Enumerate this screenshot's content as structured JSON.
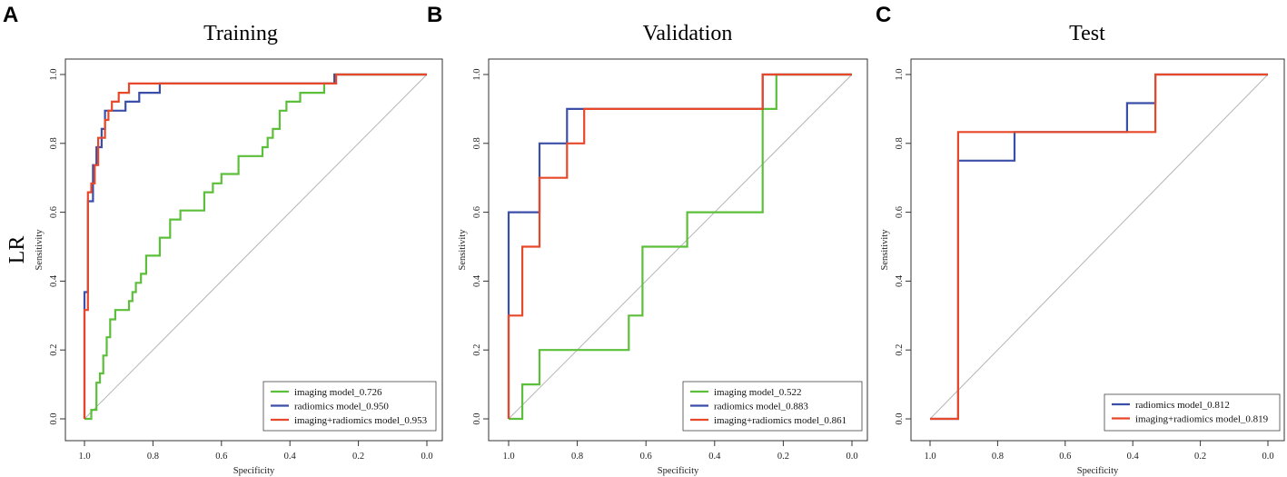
{
  "row_label": "LR",
  "chart_data": [
    {
      "panel": "A",
      "type": "line",
      "title": "Training",
      "xlabel": "Specificity",
      "ylabel": "Sensitivity",
      "xlim": [
        1.0,
        0.0
      ],
      "ylim": [
        0.0,
        1.0
      ],
      "xticks": [
        "1.0",
        "0.8",
        "0.6",
        "0.4",
        "0.2",
        "0.0"
      ],
      "yticks": [
        "0.0",
        "0.2",
        "0.4",
        "0.6",
        "0.8",
        "1.0"
      ],
      "diagonal": true,
      "legend_position": "bottom-right",
      "series": [
        {
          "name": "imaging model_0.726",
          "color": "#5cbf3a",
          "x": [
            1.0,
            0.98,
            0.98,
            0.965,
            0.965,
            0.955,
            0.955,
            0.945,
            0.945,
            0.935,
            0.935,
            0.925,
            0.925,
            0.91,
            0.91,
            0.87,
            0.87,
            0.86,
            0.86,
            0.85,
            0.85,
            0.835,
            0.835,
            0.82,
            0.82,
            0.78,
            0.78,
            0.75,
            0.75,
            0.72,
            0.72,
            0.65,
            0.65,
            0.625,
            0.625,
            0.6,
            0.6,
            0.55,
            0.55,
            0.48,
            0.48,
            0.465,
            0.465,
            0.45,
            0.45,
            0.43,
            0.43,
            0.41,
            0.41,
            0.37,
            0.37,
            0.35,
            0.35,
            0.3,
            0.3,
            0.27,
            0.27,
            0.0
          ],
          "y": [
            0.0,
            0.0,
            0.026,
            0.026,
            0.105,
            0.105,
            0.132,
            0.132,
            0.184,
            0.184,
            0.237,
            0.237,
            0.289,
            0.289,
            0.316,
            0.316,
            0.342,
            0.342,
            0.368,
            0.368,
            0.395,
            0.395,
            0.421,
            0.421,
            0.474,
            0.474,
            0.526,
            0.526,
            0.579,
            0.579,
            0.605,
            0.605,
            0.658,
            0.658,
            0.684,
            0.684,
            0.711,
            0.711,
            0.763,
            0.763,
            0.789,
            0.789,
            0.816,
            0.816,
            0.842,
            0.842,
            0.895,
            0.895,
            0.921,
            0.921,
            0.947,
            0.947,
            0.947,
            0.947,
            0.974,
            0.974,
            1.0,
            1.0
          ]
        },
        {
          "name": "radiomics model_0.950",
          "color": "#3b4ea8",
          "x": [
            1.0,
            1.0,
            0.99,
            0.99,
            0.975,
            0.975,
            0.965,
            0.965,
            0.95,
            0.95,
            0.94,
            0.94,
            0.9,
            0.9,
            0.88,
            0.88,
            0.84,
            0.84,
            0.81,
            0.81,
            0.78,
            0.78,
            0.27,
            0.27,
            0.0
          ],
          "y": [
            0.0,
            0.368,
            0.368,
            0.632,
            0.632,
            0.737,
            0.737,
            0.789,
            0.789,
            0.842,
            0.842,
            0.895,
            0.895,
            0.895,
            0.895,
            0.921,
            0.921,
            0.947,
            0.947,
            0.947,
            0.947,
            0.974,
            0.974,
            1.0,
            1.0
          ]
        },
        {
          "name": "imaging+radiomics model_0.953",
          "color": "#e8482a",
          "x": [
            1.0,
            1.0,
            0.99,
            0.99,
            0.98,
            0.98,
            0.97,
            0.97,
            0.96,
            0.96,
            0.94,
            0.94,
            0.93,
            0.93,
            0.92,
            0.92,
            0.9,
            0.9,
            0.88,
            0.88,
            0.87,
            0.87,
            0.265,
            0.265,
            0.0
          ],
          "y": [
            0.0,
            0.316,
            0.316,
            0.658,
            0.658,
            0.684,
            0.684,
            0.737,
            0.737,
            0.816,
            0.816,
            0.868,
            0.868,
            0.895,
            0.895,
            0.921,
            0.921,
            0.947,
            0.947,
            0.947,
            0.947,
            0.974,
            0.974,
            1.0,
            1.0
          ]
        }
      ]
    },
    {
      "panel": "B",
      "type": "line",
      "title": "Validation",
      "xlabel": "Specificity",
      "ylabel": "Sensitivity",
      "xlim": [
        1.0,
        0.0
      ],
      "ylim": [
        0.0,
        1.0
      ],
      "xticks": [
        "1.0",
        "0.8",
        "0.6",
        "0.4",
        "0.2",
        "0.0"
      ],
      "yticks": [
        "0.0",
        "0.2",
        "0.4",
        "0.6",
        "0.8",
        "1.0"
      ],
      "diagonal": true,
      "legend_position": "bottom-right",
      "series": [
        {
          "name": "imaging model_0.522",
          "color": "#5cbf3a",
          "x": [
            1.0,
            0.96,
            0.96,
            0.91,
            0.91,
            0.65,
            0.65,
            0.61,
            0.61,
            0.48,
            0.48,
            0.26,
            0.26,
            0.22,
            0.22,
            0.0
          ],
          "y": [
            0.0,
            0.0,
            0.1,
            0.1,
            0.2,
            0.2,
            0.3,
            0.3,
            0.5,
            0.5,
            0.6,
            0.6,
            0.9,
            0.9,
            1.0,
            1.0
          ]
        },
        {
          "name": "radiomics model_0.883",
          "color": "#3b4ea8",
          "x": [
            1.0,
            1.0,
            0.91,
            0.91,
            0.83,
            0.83,
            0.78,
            0.78,
            0.26,
            0.26,
            0.0
          ],
          "y": [
            0.0,
            0.6,
            0.6,
            0.8,
            0.8,
            0.9,
            0.9,
            0.9,
            0.9,
            1.0,
            1.0
          ]
        },
        {
          "name": "imaging+radiomics model_0.861",
          "color": "#e8482a",
          "x": [
            1.0,
            1.0,
            0.96,
            0.96,
            0.91,
            0.91,
            0.83,
            0.83,
            0.78,
            0.78,
            0.26,
            0.26,
            0.0
          ],
          "y": [
            0.0,
            0.3,
            0.3,
            0.5,
            0.5,
            0.7,
            0.7,
            0.8,
            0.8,
            0.9,
            0.9,
            1.0,
            1.0
          ]
        }
      ]
    },
    {
      "panel": "C",
      "type": "line",
      "title": "Test",
      "xlabel": "Specificity",
      "ylabel": "Sensitivity",
      "xlim": [
        1.0,
        0.0
      ],
      "ylim": [
        0.0,
        1.0
      ],
      "xticks": [
        "1.0",
        "0.8",
        "0.6",
        "0.4",
        "0.2",
        "0.0"
      ],
      "yticks": [
        "0.0",
        "0.2",
        "0.4",
        "0.6",
        "0.8",
        "1.0"
      ],
      "diagonal": true,
      "legend_position": "bottom-right",
      "series": [
        {
          "name": "radiomics model_0.812",
          "color": "#3b4ea8",
          "x": [
            1.0,
            0.917,
            0.917,
            0.75,
            0.75,
            0.417,
            0.417,
            0.333,
            0.333,
            0.0
          ],
          "y": [
            0.0,
            0.0,
            0.75,
            0.75,
            0.833,
            0.833,
            0.917,
            0.917,
            1.0,
            1.0
          ]
        },
        {
          "name": "imaging+radiomics model_0.819",
          "color": "#e8482a",
          "x": [
            1.0,
            0.917,
            0.917,
            0.333,
            0.333,
            0.0
          ],
          "y": [
            0.0,
            0.0,
            0.833,
            0.833,
            1.0,
            1.0
          ]
        }
      ]
    }
  ]
}
